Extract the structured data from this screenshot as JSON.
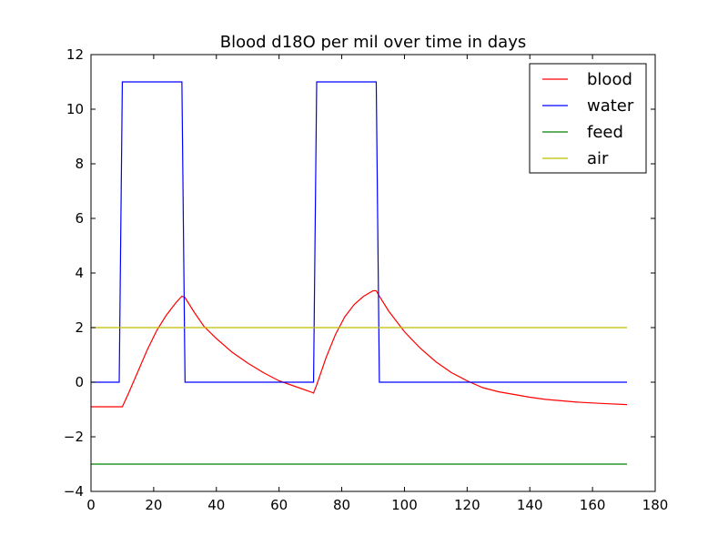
{
  "chart_data": {
    "type": "line",
    "title": "Blood d18O per mil over time in days",
    "xlabel": "",
    "ylabel": "",
    "xlim": [
      0,
      180
    ],
    "ylim": [
      -4,
      12
    ],
    "x_ticks": [
      0,
      20,
      40,
      60,
      80,
      100,
      120,
      140,
      160,
      180
    ],
    "y_ticks": [
      -4,
      -2,
      0,
      2,
      4,
      6,
      8,
      10,
      12
    ],
    "x_tick_labels": [
      "0",
      "20",
      "40",
      "60",
      "80",
      "100",
      "120",
      "140",
      "160",
      "180"
    ],
    "y_tick_labels": [
      "−4",
      "−2",
      "0",
      "2",
      "4",
      "6",
      "8",
      "10",
      "12"
    ],
    "grid": false,
    "legend_position": "top-right",
    "series": [
      {
        "name": "blood",
        "color": "#ff0000",
        "x": [
          0,
          9,
          10,
          12,
          15,
          18,
          21,
          24,
          27,
          29,
          30,
          33,
          36,
          40,
          45,
          50,
          55,
          60,
          65,
          70,
          71,
          72,
          75,
          78,
          81,
          84,
          87,
          90,
          91,
          92,
          95,
          100,
          105,
          110,
          115,
          120,
          125,
          130,
          135,
          140,
          145,
          150,
          155,
          160,
          165,
          171
        ],
        "y": [
          -0.9,
          -0.9,
          -0.9,
          -0.4,
          0.4,
          1.2,
          1.9,
          2.45,
          2.9,
          3.15,
          3.1,
          2.55,
          2.05,
          1.6,
          1.1,
          0.7,
          0.35,
          0.05,
          -0.15,
          -0.35,
          -0.4,
          -0.1,
          0.9,
          1.75,
          2.4,
          2.85,
          3.15,
          3.35,
          3.35,
          3.15,
          2.6,
          1.85,
          1.25,
          0.75,
          0.35,
          0.05,
          -0.2,
          -0.35,
          -0.45,
          -0.55,
          -0.63,
          -0.68,
          -0.73,
          -0.76,
          -0.79,
          -0.82
        ]
      },
      {
        "name": "water",
        "color": "#0000ff",
        "x": [
          0,
          9,
          10,
          29,
          30,
          71,
          72,
          91,
          92,
          171
        ],
        "y": [
          0,
          0,
          11,
          11,
          0,
          0,
          11,
          11,
          0,
          0
        ]
      },
      {
        "name": "feed",
        "color": "#008000",
        "x": [
          0,
          171
        ],
        "y": [
          -3,
          -3
        ]
      },
      {
        "name": "air",
        "color": "#bfbf00",
        "x": [
          0,
          171
        ],
        "y": [
          2,
          2
        ]
      }
    ]
  }
}
